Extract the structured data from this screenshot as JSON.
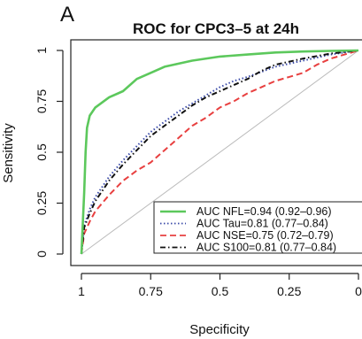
{
  "panel_label": "A",
  "chart_data": {
    "type": "line",
    "title": "ROC for CPC3–5 at 24h",
    "xlabel": "Specificity",
    "ylabel": "Sensitivity",
    "xlim": [
      1,
      0
    ],
    "ylim": [
      0,
      1
    ],
    "x_ticks": [
      "1",
      "0.75",
      "0.5",
      "0.25",
      "0"
    ],
    "y_ticks": [
      "0",
      "0.25",
      "0.5",
      "0.75",
      "1"
    ],
    "legend_position": "bottom-right",
    "series": [
      {
        "name": "AUC NFL=0.94 (0.92–0.96)",
        "color": "#5cc85c",
        "dash": "solid",
        "points": [
          [
            1,
            0
          ],
          [
            0.99,
            0.3
          ],
          [
            0.985,
            0.5
          ],
          [
            0.98,
            0.62
          ],
          [
            0.97,
            0.68
          ],
          [
            0.95,
            0.72
          ],
          [
            0.9,
            0.77
          ],
          [
            0.85,
            0.8
          ],
          [
            0.8,
            0.86
          ],
          [
            0.75,
            0.89
          ],
          [
            0.7,
            0.92
          ],
          [
            0.6,
            0.95
          ],
          [
            0.5,
            0.97
          ],
          [
            0.4,
            0.98
          ],
          [
            0.3,
            0.99
          ],
          [
            0.2,
            0.995
          ],
          [
            0.1,
            0.998
          ],
          [
            0,
            1
          ]
        ]
      },
      {
        "name": "AUC Tau=0.81 (0.77–0.84)",
        "color": "#3a4aa8",
        "dash": "dotted",
        "points": [
          [
            1,
            0
          ],
          [
            0.99,
            0.14
          ],
          [
            0.97,
            0.22
          ],
          [
            0.95,
            0.28
          ],
          [
            0.9,
            0.38
          ],
          [
            0.85,
            0.46
          ],
          [
            0.8,
            0.53
          ],
          [
            0.75,
            0.6
          ],
          [
            0.7,
            0.65
          ],
          [
            0.65,
            0.7
          ],
          [
            0.6,
            0.74
          ],
          [
            0.55,
            0.78
          ],
          [
            0.5,
            0.82
          ],
          [
            0.45,
            0.85
          ],
          [
            0.4,
            0.87
          ],
          [
            0.3,
            0.92
          ],
          [
            0.2,
            0.95
          ],
          [
            0.1,
            0.98
          ],
          [
            0,
            1
          ]
        ]
      },
      {
        "name": "AUC NSE=0.75 (0.72–0.79)",
        "color": "#e84040",
        "dash": "dashed",
        "points": [
          [
            1,
            0
          ],
          [
            0.99,
            0.1
          ],
          [
            0.97,
            0.16
          ],
          [
            0.95,
            0.21
          ],
          [
            0.9,
            0.29
          ],
          [
            0.85,
            0.36
          ],
          [
            0.8,
            0.41
          ],
          [
            0.75,
            0.45
          ],
          [
            0.7,
            0.51
          ],
          [
            0.65,
            0.57
          ],
          [
            0.6,
            0.63
          ],
          [
            0.55,
            0.67
          ],
          [
            0.5,
            0.72
          ],
          [
            0.45,
            0.75
          ],
          [
            0.4,
            0.79
          ],
          [
            0.35,
            0.82
          ],
          [
            0.3,
            0.85
          ],
          [
            0.25,
            0.87
          ],
          [
            0.2,
            0.89
          ],
          [
            0.15,
            0.93
          ],
          [
            0.1,
            0.96
          ],
          [
            0.05,
            0.98
          ],
          [
            0,
            1
          ]
        ]
      },
      {
        "name": "AUC S100=0.81 (0.77–0.84)",
        "color": "#111111",
        "dash": "dotdash",
        "points": [
          [
            1,
            0
          ],
          [
            0.99,
            0.13
          ],
          [
            0.97,
            0.2
          ],
          [
            0.95,
            0.26
          ],
          [
            0.9,
            0.36
          ],
          [
            0.85,
            0.44
          ],
          [
            0.8,
            0.51
          ],
          [
            0.75,
            0.58
          ],
          [
            0.7,
            0.63
          ],
          [
            0.65,
            0.68
          ],
          [
            0.6,
            0.73
          ],
          [
            0.55,
            0.77
          ],
          [
            0.5,
            0.8
          ],
          [
            0.45,
            0.83
          ],
          [
            0.4,
            0.86
          ],
          [
            0.35,
            0.9
          ],
          [
            0.3,
            0.93
          ],
          [
            0.2,
            0.96
          ],
          [
            0.1,
            0.985
          ],
          [
            0,
            1
          ]
        ]
      }
    ]
  }
}
